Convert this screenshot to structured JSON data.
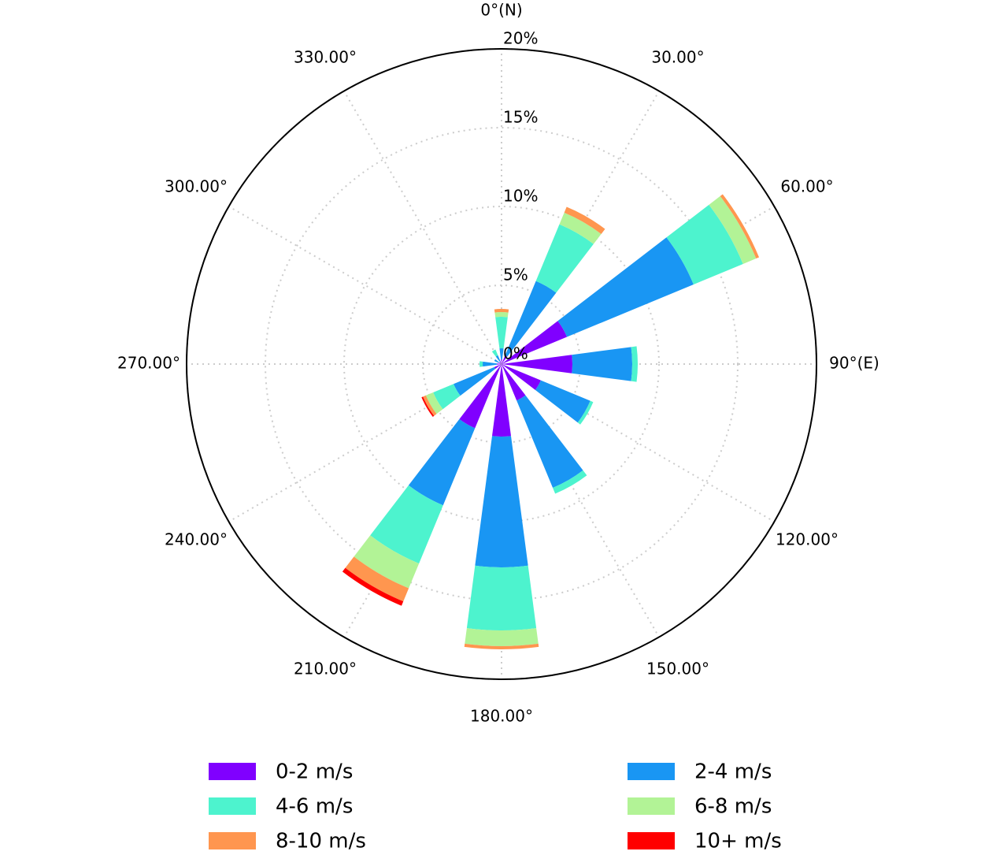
{
  "chart_data": {
    "type": "windrose",
    "xticks": [
      {
        "value": 0,
        "label": "0°(N)"
      },
      {
        "value": 30,
        "label": "30.00°"
      },
      {
        "value": 60,
        "label": "60.00°"
      },
      {
        "value": 90,
        "label": "90°(E)"
      },
      {
        "value": 120,
        "label": "120.00°"
      },
      {
        "value": 150,
        "label": "150.00°"
      },
      {
        "value": 180,
        "label": "180.00°"
      },
      {
        "value": 210,
        "label": "210.00°"
      },
      {
        "value": 240,
        "label": "240.00°"
      },
      {
        "value": 270,
        "label": "270.00°"
      },
      {
        "value": 300,
        "label": "300.00°"
      },
      {
        "value": 330,
        "label": "330.00°"
      }
    ],
    "ylim": [
      0,
      20
    ],
    "yticks": [
      {
        "value": 0,
        "label": "0%"
      },
      {
        "value": 5,
        "label": "5%"
      },
      {
        "value": 10,
        "label": "10%"
      },
      {
        "value": 15,
        "label": "15%"
      },
      {
        "value": 20,
        "label": "20%"
      }
    ],
    "grid": true,
    "series": [
      {
        "name": "0-2 m/s",
        "color": "#8000ff",
        "values": [
          0.3,
          0.6,
          4.5,
          4.5,
          2.7,
          2.5,
          4.6,
          4.4,
          0.5,
          0.3,
          0.2,
          0.2
        ]
      },
      {
        "name": "2-4 m/s",
        "color": "#1996f3",
        "values": [
          0.7,
          5.1,
          8.7,
          3.8,
          3.4,
          6.0,
          8.3,
          5.3,
          2.8,
          0.9,
          0.3,
          0.4
        ]
      },
      {
        "name": "4-6 m/s",
        "color": "#4df3ce",
        "values": [
          2.0,
          3.9,
          3.4,
          0.35,
          0.2,
          0.4,
          4.0,
          4.0,
          1.4,
          0.2,
          0,
          0.4
        ]
      },
      {
        "name": "6-8 m/s",
        "color": "#b2f396",
        "values": [
          0.3,
          0.8,
          0.9,
          0,
          0,
          0,
          1.0,
          1.7,
          0.5,
          0,
          0,
          0
        ]
      },
      {
        "name": "8-10 m/s",
        "color": "#ff964f",
        "values": [
          0.2,
          0.4,
          0.2,
          0,
          0,
          0,
          0.2,
          0.9,
          0.2,
          0,
          0,
          0
        ]
      },
      {
        "name": "10+ m/s",
        "color": "#ff0000",
        "values": [
          0,
          0,
          0,
          0,
          0,
          0,
          0,
          0.3,
          0.1,
          0,
          0,
          0
        ]
      }
    ]
  }
}
